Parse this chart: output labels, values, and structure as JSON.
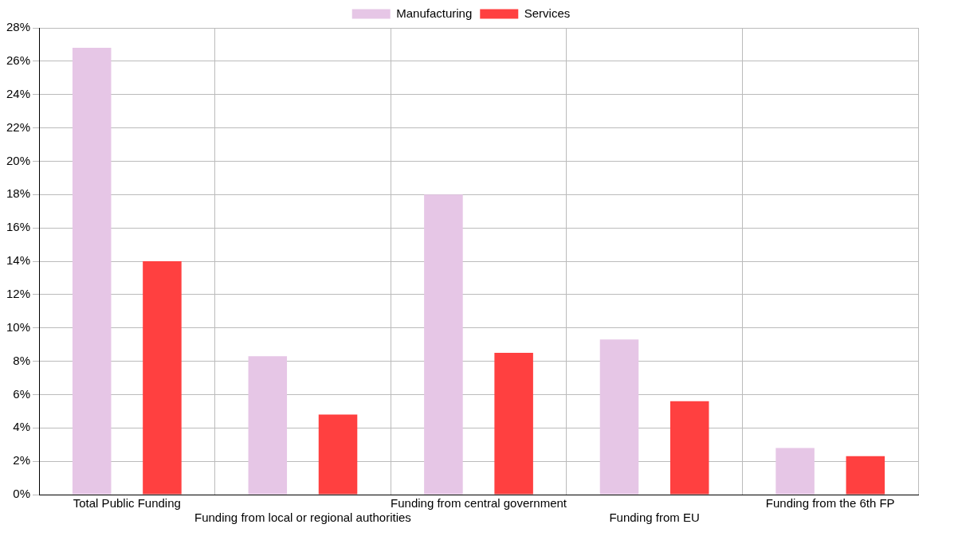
{
  "chart_data": {
    "type": "bar",
    "categories": [
      "Total Public Funding",
      "Funding from local or regional authorities",
      "Funding from central government",
      "Funding from EU",
      "Funding from the 6th FP"
    ],
    "series": [
      {
        "name": "Manufacturing",
        "color": "#e6c6e6",
        "values": [
          26.8,
          8.3,
          18.0,
          9.3,
          2.8
        ]
      },
      {
        "name": "Services",
        "color": "#ff4040",
        "values": [
          14.0,
          4.8,
          8.5,
          5.6,
          2.3
        ]
      }
    ],
    "ylim": [
      0,
      28
    ],
    "yticks": [
      {
        "value": 0,
        "label": "0%"
      },
      {
        "value": 2,
        "label": "2%"
      },
      {
        "value": 4,
        "label": "4%"
      },
      {
        "value": 6,
        "label": "6%"
      },
      {
        "value": 8,
        "label": "8%"
      },
      {
        "value": 10,
        "label": "10%"
      },
      {
        "value": 12,
        "label": "12%"
      },
      {
        "value": 14,
        "label": "14%"
      },
      {
        "value": 16,
        "label": "16%"
      },
      {
        "value": 18,
        "label": "18%"
      },
      {
        "value": 20,
        "label": "20%"
      },
      {
        "value": 22,
        "label": "22%"
      },
      {
        "value": 24,
        "label": "24%"
      },
      {
        "value": 26,
        "label": "26%"
      },
      {
        "value": 28,
        "label": "28%"
      }
    ],
    "grid": true,
    "legend": "top"
  }
}
